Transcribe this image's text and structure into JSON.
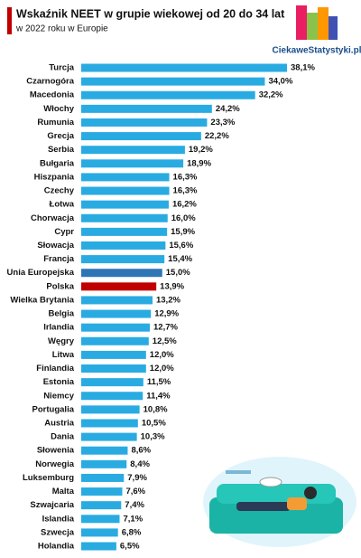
{
  "chart_data": {
    "type": "bar",
    "orientation": "horizontal",
    "title": "Wskaźnik NEET w grupie wiekowej od 20 do 34 lat",
    "subtitle": "w 2022 roku w Europie",
    "source": "CiekaweStatystyki.pl",
    "categories": [
      "Turcja",
      "Czarnogóra",
      "Macedonia",
      "Włochy",
      "Rumunia",
      "Grecja",
      "Serbia",
      "Bułgaria",
      "Hiszpania",
      "Czechy",
      "Łotwa",
      "Chorwacja",
      "Cypr",
      "Słowacja",
      "Francja",
      "Unia Europejska",
      "Polska",
      "Wielka Brytania",
      "Belgia",
      "Irlandia",
      "Węgry",
      "Litwa",
      "Finlandia",
      "Estonia",
      "Niemcy",
      "Portugalia",
      "Austria",
      "Dania",
      "Słowenia",
      "Norwegia",
      "Luksemburg",
      "Malta",
      "Szwajcaria",
      "Islandia",
      "Szwecja",
      "Holandia"
    ],
    "values": [
      38.1,
      34.0,
      32.2,
      24.2,
      23.3,
      22.2,
      19.2,
      18.9,
      16.3,
      16.3,
      16.2,
      16.0,
      15.9,
      15.6,
      15.4,
      15.0,
      13.9,
      13.2,
      12.9,
      12.7,
      12.5,
      12.0,
      12.0,
      11.5,
      11.4,
      10.8,
      10.5,
      10.3,
      8.6,
      8.4,
      7.9,
      7.6,
      7.4,
      7.1,
      6.8,
      6.5
    ],
    "value_labels": [
      "38,1%",
      "34,0%",
      "32,2%",
      "24,2%",
      "23,3%",
      "22,2%",
      "19,2%",
      "18,9%",
      "16,3%",
      "16,3%",
      "16,2%",
      "16,0%",
      "15,9%",
      "15,6%",
      "15,4%",
      "15,0%",
      "13,9%",
      "13,2%",
      "12,9%",
      "12,7%",
      "12,5%",
      "12,0%",
      "12,0%",
      "11,5%",
      "11,4%",
      "10,8%",
      "10,5%",
      "10,3%",
      "8,6%",
      "8,4%",
      "7,9%",
      "7,6%",
      "7,4%",
      "7,1%",
      "6,8%",
      "6,5%"
    ],
    "colors": [
      "#29abe2",
      "#29abe2",
      "#29abe2",
      "#29abe2",
      "#29abe2",
      "#29abe2",
      "#29abe2",
      "#29abe2",
      "#29abe2",
      "#29abe2",
      "#29abe2",
      "#29abe2",
      "#29abe2",
      "#29abe2",
      "#29abe2",
      "#2e75b6",
      "#c00000",
      "#29abe2",
      "#29abe2",
      "#29abe2",
      "#29abe2",
      "#29abe2",
      "#29abe2",
      "#29abe2",
      "#29abe2",
      "#29abe2",
      "#29abe2",
      "#29abe2",
      "#29abe2",
      "#29abe2",
      "#29abe2",
      "#29abe2",
      "#29abe2",
      "#29abe2",
      "#29abe2",
      "#29abe2"
    ]
  }
}
